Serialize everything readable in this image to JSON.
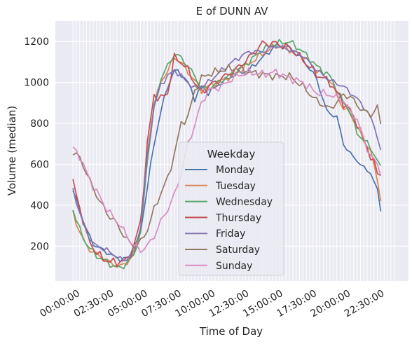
{
  "chart_data": {
    "type": "line",
    "title": "E of DUNN AV",
    "xlabel": "Time of Day",
    "ylabel": "Volume (median)",
    "x_unit": "hours (15-minute intervals)",
    "xlim": [
      -1.3,
      24.8
    ],
    "ylim": [
      30,
      1300
    ],
    "yticks": [
      200,
      400,
      600,
      800,
      1000,
      1200
    ],
    "xticks": [
      {
        "value": 0,
        "label": "00:00:00"
      },
      {
        "value": 2.5,
        "label": "02:30:00"
      },
      {
        "value": 5,
        "label": "05:00:00"
      },
      {
        "value": 7.5,
        "label": "07:30:00"
      },
      {
        "value": 10,
        "label": "10:00:00"
      },
      {
        "value": 12.5,
        "label": "12:30:00"
      },
      {
        "value": 15,
        "label": "15:00:00"
      },
      {
        "value": 17.5,
        "label": "17:30:00"
      },
      {
        "value": 20,
        "label": "20:00:00"
      },
      {
        "value": 22.5,
        "label": "22:30:00"
      }
    ],
    "grid": true,
    "legend": {
      "title": "Weekday",
      "placement": "lower-center"
    },
    "series": [
      {
        "name": "Monday",
        "color": "#4c72b0",
        "keyframes": [
          [
            0,
            470
          ],
          [
            0.5,
            380
          ],
          [
            1,
            280
          ],
          [
            1.5,
            210
          ],
          [
            2,
            190
          ],
          [
            2.5,
            170
          ],
          [
            3,
            150
          ],
          [
            3.5,
            135
          ],
          [
            4,
            140
          ],
          [
            4.5,
            170
          ],
          [
            5,
            270
          ],
          [
            5.5,
            490
          ],
          [
            6,
            700
          ],
          [
            6.5,
            860
          ],
          [
            7,
            980
          ],
          [
            7.5,
            1060
          ],
          [
            8,
            1040
          ],
          [
            8.5,
            1000
          ],
          [
            9,
            920
          ],
          [
            9.5,
            980
          ],
          [
            10,
            950
          ],
          [
            11,
            1000
          ],
          [
            12,
            1040
          ],
          [
            13,
            1060
          ],
          [
            14,
            1120
          ],
          [
            15,
            1180
          ],
          [
            16,
            1170
          ],
          [
            17,
            1110
          ],
          [
            18,
            1020
          ],
          [
            18.75,
            860
          ],
          [
            19.5,
            830
          ],
          [
            20,
            700
          ],
          [
            20.5,
            650
          ],
          [
            21,
            620
          ],
          [
            21.5,
            580
          ],
          [
            22,
            560
          ],
          [
            22.5,
            470
          ],
          [
            22.75,
            380
          ]
        ],
        "noise": 15
      },
      {
        "name": "Tuesday",
        "color": "#dd8452",
        "keyframes": [
          [
            0,
            360
          ],
          [
            0.5,
            270
          ],
          [
            1,
            200
          ],
          [
            1.5,
            170
          ],
          [
            2,
            150
          ],
          [
            2.5,
            130
          ],
          [
            3,
            110
          ],
          [
            3.5,
            100
          ],
          [
            4,
            120
          ],
          [
            4.5,
            170
          ],
          [
            5,
            280
          ],
          [
            5.5,
            650
          ],
          [
            6,
            900
          ],
          [
            6.5,
            1000
          ],
          [
            7,
            1060
          ],
          [
            7.5,
            1120
          ],
          [
            8,
            1100
          ],
          [
            8.5,
            1050
          ],
          [
            9,
            1010
          ],
          [
            9.5,
            960
          ],
          [
            10,
            980
          ],
          [
            11,
            1010
          ],
          [
            12,
            1040
          ],
          [
            13,
            1090
          ],
          [
            14,
            1140
          ],
          [
            15,
            1180
          ],
          [
            16,
            1160
          ],
          [
            17,
            1130
          ],
          [
            18,
            1060
          ],
          [
            19,
            1010
          ],
          [
            20,
            870
          ],
          [
            20.5,
            850
          ],
          [
            21,
            780
          ],
          [
            21.5,
            720
          ],
          [
            22,
            660
          ],
          [
            22.5,
            530
          ],
          [
            22.75,
            420
          ]
        ],
        "noise": 18
      },
      {
        "name": "Wednesday",
        "color": "#55a868",
        "keyframes": [
          [
            0,
            380
          ],
          [
            0.5,
            280
          ],
          [
            1,
            210
          ],
          [
            1.5,
            170
          ],
          [
            2,
            140
          ],
          [
            2.5,
            125
          ],
          [
            3,
            100
          ],
          [
            3.5,
            95
          ],
          [
            4,
            115
          ],
          [
            4.5,
            160
          ],
          [
            5,
            260
          ],
          [
            5.5,
            620
          ],
          [
            6,
            880
          ],
          [
            6.5,
            1020
          ],
          [
            7,
            1080
          ],
          [
            7.5,
            1140
          ],
          [
            8,
            1120
          ],
          [
            8.5,
            1080
          ],
          [
            9,
            1030
          ],
          [
            9.5,
            970
          ],
          [
            10,
            970
          ],
          [
            11,
            1010
          ],
          [
            12,
            1050
          ],
          [
            13,
            1100
          ],
          [
            14,
            1160
          ],
          [
            15,
            1190
          ],
          [
            16,
            1200
          ],
          [
            17,
            1150
          ],
          [
            18,
            1080
          ],
          [
            19,
            1030
          ],
          [
            20,
            900
          ],
          [
            20.5,
            860
          ],
          [
            21,
            750
          ],
          [
            21.5,
            720
          ],
          [
            22,
            680
          ],
          [
            22.5,
            620
          ],
          [
            22.75,
            580
          ]
        ],
        "noise": 18
      },
      {
        "name": "Thursday",
        "color": "#c44e52",
        "keyframes": [
          [
            0,
            510
          ],
          [
            0.5,
            390
          ],
          [
            1,
            260
          ],
          [
            1.5,
            190
          ],
          [
            2,
            150
          ],
          [
            2.5,
            130
          ],
          [
            3,
            120
          ],
          [
            3.5,
            125
          ],
          [
            4,
            130
          ],
          [
            4.5,
            200
          ],
          [
            5,
            320
          ],
          [
            5.5,
            700
          ],
          [
            6,
            940
          ],
          [
            6.5,
            920
          ],
          [
            7,
            950
          ],
          [
            7.5,
            1120
          ],
          [
            8,
            1100
          ],
          [
            8.5,
            1060
          ],
          [
            9,
            1000
          ],
          [
            9.5,
            950
          ],
          [
            10,
            980
          ],
          [
            11,
            1020
          ],
          [
            12,
            1060
          ],
          [
            13,
            1120
          ],
          [
            14,
            1190
          ],
          [
            15,
            1190
          ],
          [
            16,
            1170
          ],
          [
            17,
            1110
          ],
          [
            18,
            1040
          ],
          [
            19,
            1000
          ],
          [
            20,
            900
          ],
          [
            20.5,
            860
          ],
          [
            21,
            800
          ],
          [
            21.5,
            720
          ],
          [
            22,
            640
          ],
          [
            22.5,
            560
          ],
          [
            22.75,
            550
          ]
        ],
        "noise": 25
      },
      {
        "name": "Friday",
        "color": "#8172b3",
        "keyframes": [
          [
            0,
            480
          ],
          [
            0.5,
            360
          ],
          [
            1,
            270
          ],
          [
            1.5,
            210
          ],
          [
            2,
            195
          ],
          [
            2.5,
            180
          ],
          [
            3,
            160
          ],
          [
            3.5,
            135
          ],
          [
            4,
            135
          ],
          [
            4.5,
            190
          ],
          [
            5,
            290
          ],
          [
            5.5,
            640
          ],
          [
            6,
            880
          ],
          [
            6.5,
            990
          ],
          [
            7,
            1030
          ],
          [
            7.5,
            1060
          ],
          [
            8,
            1030
          ],
          [
            8.5,
            1000
          ],
          [
            9,
            970
          ],
          [
            9.5,
            980
          ],
          [
            10,
            1000
          ],
          [
            11,
            1060
          ],
          [
            12,
            1110
          ],
          [
            13,
            1150
          ],
          [
            14,
            1150
          ],
          [
            15,
            1180
          ],
          [
            16,
            1160
          ],
          [
            17,
            1130
          ],
          [
            18,
            1060
          ],
          [
            19,
            1010
          ],
          [
            20,
            980
          ],
          [
            20.5,
            950
          ],
          [
            21,
            920
          ],
          [
            21.5,
            880
          ],
          [
            22,
            830
          ],
          [
            22.5,
            740
          ],
          [
            22.75,
            660
          ]
        ],
        "noise": 15
      },
      {
        "name": "Saturday",
        "color": "#937860",
        "keyframes": [
          [
            0,
            660
          ],
          [
            0.5,
            630
          ],
          [
            1,
            560
          ],
          [
            1.5,
            480
          ],
          [
            2,
            420
          ],
          [
            2.5,
            360
          ],
          [
            3,
            330
          ],
          [
            3.5,
            280
          ],
          [
            4,
            230
          ],
          [
            4.5,
            200
          ],
          [
            5,
            220
          ],
          [
            5.5,
            280
          ],
          [
            6,
            380
          ],
          [
            6.5,
            460
          ],
          [
            7,
            530
          ],
          [
            7.5,
            650
          ],
          [
            8,
            800
          ],
          [
            8.5,
            830
          ],
          [
            9,
            960
          ],
          [
            9.5,
            1020
          ],
          [
            10,
            1040
          ],
          [
            11,
            1060
          ],
          [
            12,
            1070
          ],
          [
            13,
            1050
          ],
          [
            14,
            1040
          ],
          [
            15,
            1030
          ],
          [
            16,
            1030
          ],
          [
            17,
            980
          ],
          [
            18,
            910
          ],
          [
            19,
            870
          ],
          [
            20,
            940
          ],
          [
            20.5,
            930
          ],
          [
            21,
            890
          ],
          [
            21.5,
            860
          ],
          [
            22,
            840
          ],
          [
            22.5,
            880
          ],
          [
            22.75,
            790
          ]
        ],
        "noise": 22
      },
      {
        "name": "Sunday",
        "color": "#da8bc3",
        "keyframes": [
          [
            0,
            680
          ],
          [
            0.5,
            640
          ],
          [
            1,
            560
          ],
          [
            1.5,
            490
          ],
          [
            2,
            440
          ],
          [
            2.5,
            380
          ],
          [
            3,
            340
          ],
          [
            3.5,
            300
          ],
          [
            4,
            250
          ],
          [
            4.5,
            200
          ],
          [
            5,
            180
          ],
          [
            5.5,
            200
          ],
          [
            6,
            250
          ],
          [
            6.5,
            320
          ],
          [
            7,
            380
          ],
          [
            7.5,
            450
          ],
          [
            8,
            560
          ],
          [
            8.5,
            700
          ],
          [
            9,
            790
          ],
          [
            9.5,
            900
          ],
          [
            10,
            960
          ],
          [
            11,
            980
          ],
          [
            12,
            1030
          ],
          [
            13,
            1050
          ],
          [
            14,
            1040
          ],
          [
            15,
            1050
          ],
          [
            16,
            1020
          ],
          [
            17,
            1000
          ],
          [
            18,
            950
          ],
          [
            19,
            940
          ],
          [
            20,
            910
          ],
          [
            20.5,
            860
          ],
          [
            21,
            820
          ],
          [
            21.5,
            720
          ],
          [
            22,
            640
          ],
          [
            22.5,
            600
          ],
          [
            22.75,
            560
          ]
        ],
        "noise": 22
      }
    ]
  }
}
